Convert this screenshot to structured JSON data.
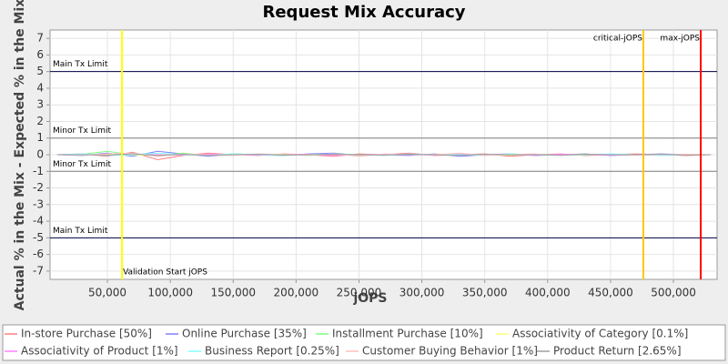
{
  "chart_data": {
    "type": "line",
    "title": "Request Mix Accuracy",
    "x_label": "jOPS",
    "y_label": "Actual % in the Mix - Expected % in the Mix",
    "xlim": [
      4400,
      534700
    ],
    "ylim": [
      -7.5,
      7.5
    ],
    "xticks": [
      {
        "value": 50000,
        "label": "50,000"
      },
      {
        "value": 100000,
        "label": "100,000"
      },
      {
        "value": 150000,
        "label": "150,000"
      },
      {
        "value": 200000,
        "label": "200,000"
      },
      {
        "value": 250000,
        "label": "250,000"
      },
      {
        "value": 300000,
        "label": "300,000"
      },
      {
        "value": 350000,
        "label": "350,000"
      },
      {
        "value": 400000,
        "label": "400,000"
      },
      {
        "value": 450000,
        "label": "450,000"
      },
      {
        "value": 500000,
        "label": "500,000"
      }
    ],
    "yticks": [
      -7,
      -6,
      -5,
      -4,
      -3,
      -2,
      -1,
      0,
      1,
      2,
      3,
      4,
      5,
      6,
      7
    ],
    "grid": true,
    "hlines": [
      {
        "value": 5,
        "label": "Main Tx Limit",
        "color": "#000044"
      },
      {
        "value": 1,
        "label": "Minor Tx Limit",
        "color": "#808080"
      },
      {
        "value": -1,
        "label": "Minor Tx Limit",
        "color": "#808080"
      },
      {
        "value": -5,
        "label": "Main Tx Limit",
        "color": "#000044"
      }
    ],
    "vlines": [
      {
        "value": 61600,
        "label": "Validation Start jOPS",
        "color": "#ffff00"
      },
      {
        "value": 476100,
        "label": "critical-jOPS",
        "color": "#ffc800"
      },
      {
        "value": 521700,
        "label": "max-jOPS",
        "color": "#ff0000"
      }
    ],
    "x": [
      10000,
      30000,
      50000,
      70000,
      90000,
      110000,
      130000,
      150000,
      170000,
      190000,
      210000,
      230000,
      250000,
      270000,
      290000,
      310000,
      330000,
      350000,
      370000,
      390000,
      410000,
      430000,
      450000,
      470000,
      490000,
      510000,
      530000
    ],
    "legend": "bottom",
    "series": [
      {
        "name": "In-store Purchase [50%]",
        "color": "#ff8080",
        "values": [
          0,
          0.05,
          -0.1,
          0.15,
          -0.3,
          -0.05,
          0.1,
          0,
          -0.05,
          0.05,
          0,
          -0.1,
          0.05,
          0,
          0.1,
          -0.05,
          0,
          0.05,
          -0.1,
          0,
          0.05,
          -0.05,
          0,
          0.05,
          0,
          -0.05,
          0
        ]
      },
      {
        "name": "Online Purchase [35%]",
        "color": "#8080ff",
        "values": [
          0,
          -0.05,
          0.1,
          -0.1,
          0.2,
          0.05,
          -0.1,
          0.05,
          0,
          -0.05,
          0.05,
          0.1,
          -0.05,
          0,
          -0.05,
          0.05,
          -0.1,
          0,
          0.05,
          -0.05,
          0,
          0.05,
          -0.05,
          0,
          0.05,
          0,
          0
        ]
      },
      {
        "name": "Installment Purchase [10%]",
        "color": "#80ff80",
        "values": [
          0,
          0.02,
          0.2,
          0,
          -0.05,
          0.1,
          -0.05,
          0.05,
          0,
          0.02,
          -0.05,
          0.05,
          0,
          0.03,
          0,
          -0.02,
          0.05,
          0,
          -0.03,
          0.02,
          0,
          -0.02,
          0.03,
          0,
          -0.02,
          0.02,
          0
        ]
      },
      {
        "name": "Associativity of Category [0.1%]",
        "color": "#ffff80",
        "values": [
          0,
          0,
          0.02,
          -0.02,
          0,
          0.02,
          0,
          -0.02,
          0,
          0,
          0.02,
          0,
          -0.02,
          0,
          0,
          0.02,
          0,
          0,
          -0.02,
          0,
          0,
          0.02,
          0,
          0,
          -0.02,
          0,
          0
        ]
      },
      {
        "name": "Associativity of Product [1%]",
        "color": "#ff80ff",
        "values": [
          0,
          0.03,
          -0.05,
          0.05,
          0,
          -0.03,
          0.05,
          0,
          -0.03,
          0,
          0.03,
          -0.05,
          0,
          0.03,
          0,
          -0.03,
          0.03,
          0,
          0,
          -0.03,
          0.03,
          0,
          -0.03,
          0,
          0.03,
          0,
          0
        ]
      },
      {
        "name": "Business Report [0.25%]",
        "color": "#80ffff",
        "values": [
          0,
          0.05,
          -0.05,
          0,
          0.1,
          0,
          -0.05,
          0.05,
          0,
          -0.05,
          0,
          0.05,
          0,
          -0.05,
          0.05,
          0,
          0,
          -0.05,
          0.05,
          0,
          -0.05,
          0,
          0.05,
          0,
          -0.05,
          0,
          0
        ]
      },
      {
        "name": "Customer Buying Behavior [1%]",
        "color": "#ffc0c0",
        "values": [
          0,
          -0.03,
          0.05,
          0.1,
          -0.1,
          0.05,
          0,
          -0.05,
          0.05,
          0,
          -0.03,
          0.05,
          -0.1,
          0.05,
          0,
          0,
          0.1,
          -0.05,
          0,
          0.05,
          -0.05,
          0.03,
          0,
          -0.03,
          0,
          0.03,
          0
        ]
      },
      {
        "name": "Product Return [2.65%]",
        "color": "#a0a0a0",
        "values": [
          0,
          0,
          -0.03,
          0.05,
          -0.05,
          0.03,
          -0.05,
          0,
          0.03,
          -0.03,
          0,
          0.03,
          0,
          -0.03,
          0.03,
          0,
          -0.05,
          0.03,
          0,
          0,
          -0.03,
          0.03,
          0,
          0,
          0.03,
          -0.03,
          0
        ]
      }
    ]
  }
}
